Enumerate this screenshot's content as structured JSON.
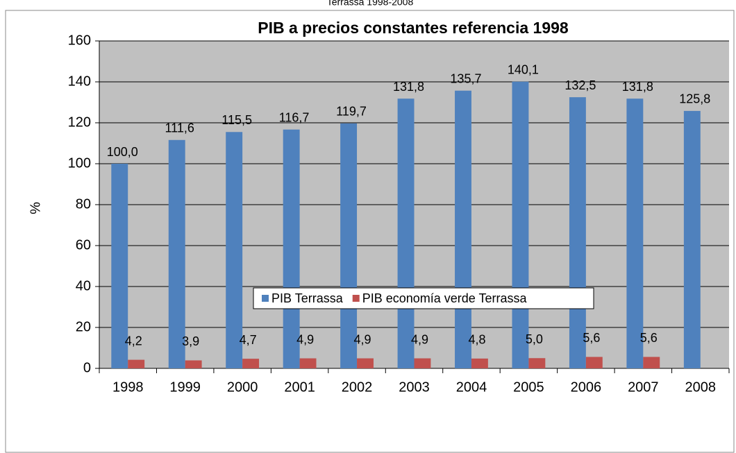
{
  "chart_data": {
    "type": "bar",
    "subtitle": "Terrassa 1998-2008",
    "title": "PIB a precios constantes referencia 1998",
    "y_label": "%",
    "categories": [
      "1998",
      "1999",
      "2000",
      "2001",
      "2002",
      "2003",
      "2004",
      "2005",
      "2006",
      "2007",
      "2008"
    ],
    "series": [
      {
        "name": "PIB Terrassa",
        "color": "#4f81bd",
        "values": [
          100.0,
          111.6,
          115.5,
          116.7,
          119.7,
          131.8,
          135.7,
          140.1,
          132.5,
          131.8,
          125.8
        ],
        "value_labels": [
          "100,0",
          "111,6",
          "115,5",
          "116,7",
          "119,7",
          "131,8",
          "135,7",
          "140,1",
          "132,5",
          "131,8",
          "125,8"
        ]
      },
      {
        "name": "PIB economía verde Terrassa",
        "color": "#c0504d",
        "values": [
          4.2,
          3.9,
          4.7,
          4.9,
          4.9,
          4.9,
          4.8,
          5.0,
          5.6,
          5.6,
          null
        ],
        "value_labels": [
          "4,2",
          "3,9",
          "4,7",
          "4,9",
          "4,9",
          "4,9",
          "4,8",
          "5,0",
          "5,6",
          "5,6",
          null
        ]
      }
    ],
    "ylim": [
      0,
      160
    ],
    "yticks": [
      0,
      20,
      40,
      60,
      80,
      100,
      120,
      140,
      160
    ],
    "grid": true,
    "legend": "bottom"
  }
}
